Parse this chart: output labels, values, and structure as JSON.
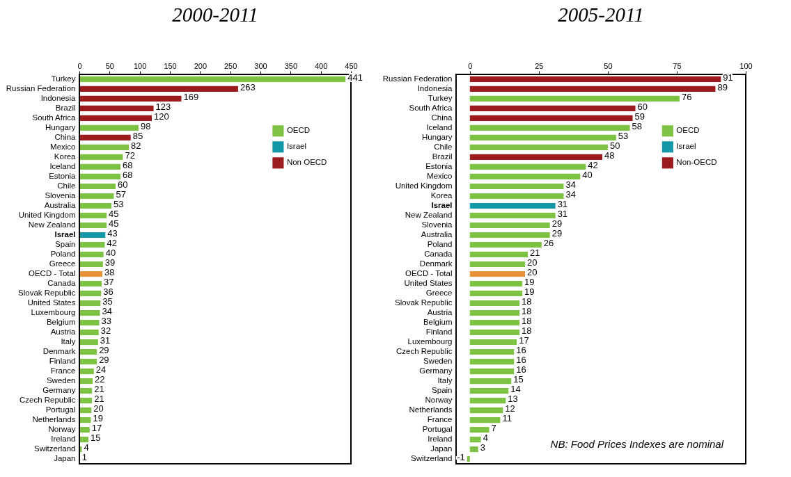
{
  "chart_data": [
    {
      "type": "bar",
      "title": "2000-2011",
      "orientation": "horizontal",
      "data_labels": true,
      "legend": "top right",
      "xlim": [
        0,
        450
      ],
      "xticks": [
        0,
        50,
        100,
        150,
        200,
        250,
        300,
        350,
        400,
        450
      ],
      "categories": [
        "Turkey",
        "Russian Federation",
        "Indonesia",
        "Brazil",
        "South Africa",
        "Hungary",
        "China",
        "Mexico",
        "Korea",
        "Iceland",
        "Estonia",
        "Chile",
        "Slovenia",
        "Australia",
        "United Kingdom",
        "New Zealand",
        "Israel",
        "Spain",
        "Poland",
        "Greece",
        "OECD - Total",
        "Canada",
        "Slovak Republic",
        "United States",
        "Luxembourg",
        "Belgium",
        "Austria",
        "Italy",
        "Denmark",
        "Finland",
        "France",
        "Sweden",
        "Germany",
        "Czech Republic",
        "Portugal",
        "Netherlands",
        "Norway",
        "Ireland",
        "Switzerland",
        "Japan"
      ],
      "series": [
        {
          "name": "OECD",
          "color": "#7dc242",
          "values": [
            441,
            null,
            null,
            null,
            null,
            98,
            null,
            82,
            72,
            68,
            68,
            60,
            57,
            53,
            45,
            45,
            null,
            42,
            40,
            39,
            null,
            37,
            36,
            35,
            34,
            33,
            32,
            31,
            29,
            29,
            24,
            22,
            21,
            21,
            20,
            19,
            17,
            15,
            4,
            1
          ]
        },
        {
          "name": "Israel",
          "color": "#1497a6",
          "values": [
            null,
            null,
            null,
            null,
            null,
            null,
            null,
            null,
            null,
            null,
            null,
            null,
            null,
            null,
            null,
            null,
            43,
            null,
            null,
            null,
            null,
            null,
            null,
            null,
            null,
            null,
            null,
            null,
            null,
            null,
            null,
            null,
            null,
            null,
            null,
            null,
            null,
            null,
            null,
            null
          ]
        },
        {
          "name": "Non OECD",
          "color": "#9b1b1e",
          "values": [
            null,
            263,
            169,
            123,
            120,
            null,
            85,
            null,
            null,
            null,
            null,
            null,
            null,
            null,
            null,
            null,
            null,
            null,
            null,
            null,
            null,
            null,
            null,
            null,
            null,
            null,
            null,
            null,
            null,
            null,
            null,
            null,
            null,
            null,
            null,
            null,
            null,
            null,
            null,
            null
          ]
        },
        {
          "color": "#e8923a",
          "values": [
            null,
            null,
            null,
            null,
            null,
            null,
            null,
            null,
            null,
            null,
            null,
            null,
            null,
            null,
            null,
            null,
            null,
            null,
            null,
            null,
            38,
            null,
            null,
            null,
            null,
            null,
            null,
            null,
            null,
            null,
            null,
            null,
            null,
            null,
            null,
            null,
            null,
            null,
            null,
            null
          ]
        }
      ]
    },
    {
      "type": "bar",
      "title": "2005-2011",
      "orientation": "horizontal",
      "data_labels": true,
      "legend": "top right",
      "xlim": [
        -5,
        100
      ],
      "xticks": [
        0,
        25,
        50,
        75,
        100
      ],
      "annotations": [
        "NB: Food Prices Indexes are nominal"
      ],
      "categories": [
        "Russian Federation",
        "Indonesia",
        "Turkey",
        "South Africa",
        "China",
        "Iceland",
        "Hungary",
        "Chile",
        "Brazil",
        "Estonia",
        "Mexico",
        "United Kingdom",
        "Korea",
        "Israel",
        "New Zealand",
        "Slovenia",
        "Australia",
        "Poland",
        "Canada",
        "Denmark",
        "OECD - Total",
        "United States",
        "Greece",
        "Slovak Republic",
        "Austria",
        "Belgium",
        "Finland",
        "Luxembourg",
        "Czech Republic",
        "Sweden",
        "Germany",
        "Italy",
        "Spain",
        "Norway",
        "Netherlands",
        "France",
        "Portugal",
        "Ireland",
        "Japan",
        "Switzerland"
      ],
      "series": [
        {
          "name": "OECD",
          "color": "#7dc242",
          "values": [
            null,
            null,
            76,
            null,
            null,
            58,
            53,
            50,
            null,
            42,
            40,
            34,
            34,
            null,
            31,
            29,
            29,
            26,
            21,
            20,
            null,
            19,
            19,
            18,
            18,
            18,
            18,
            17,
            16,
            16,
            16,
            15,
            14,
            13,
            12,
            11,
            7,
            4,
            3,
            -1
          ]
        },
        {
          "name": "Israel",
          "color": "#1497a6",
          "values": [
            null,
            null,
            null,
            null,
            null,
            null,
            null,
            null,
            null,
            null,
            null,
            null,
            null,
            31,
            null,
            null,
            null,
            null,
            null,
            null,
            null,
            null,
            null,
            null,
            null,
            null,
            null,
            null,
            null,
            null,
            null,
            null,
            null,
            null,
            null,
            null,
            null,
            null,
            null,
            null
          ]
        },
        {
          "name": "Non-OECD",
          "color": "#9b1b1e",
          "values": [
            91,
            89,
            null,
            60,
            59,
            null,
            null,
            null,
            48,
            null,
            null,
            null,
            null,
            null,
            null,
            null,
            null,
            null,
            null,
            null,
            null,
            null,
            null,
            null,
            null,
            null,
            null,
            null,
            null,
            null,
            null,
            null,
            null,
            null,
            null,
            null,
            null,
            null,
            null,
            null
          ]
        },
        {
          "color": "#e8923a",
          "values": [
            null,
            null,
            null,
            null,
            null,
            null,
            null,
            null,
            null,
            null,
            null,
            null,
            null,
            null,
            null,
            null,
            null,
            null,
            null,
            null,
            20,
            null,
            null,
            null,
            null,
            null,
            null,
            null,
            null,
            null,
            null,
            null,
            null,
            null,
            null,
            null,
            null,
            null,
            null,
            null
          ]
        }
      ]
    }
  ]
}
